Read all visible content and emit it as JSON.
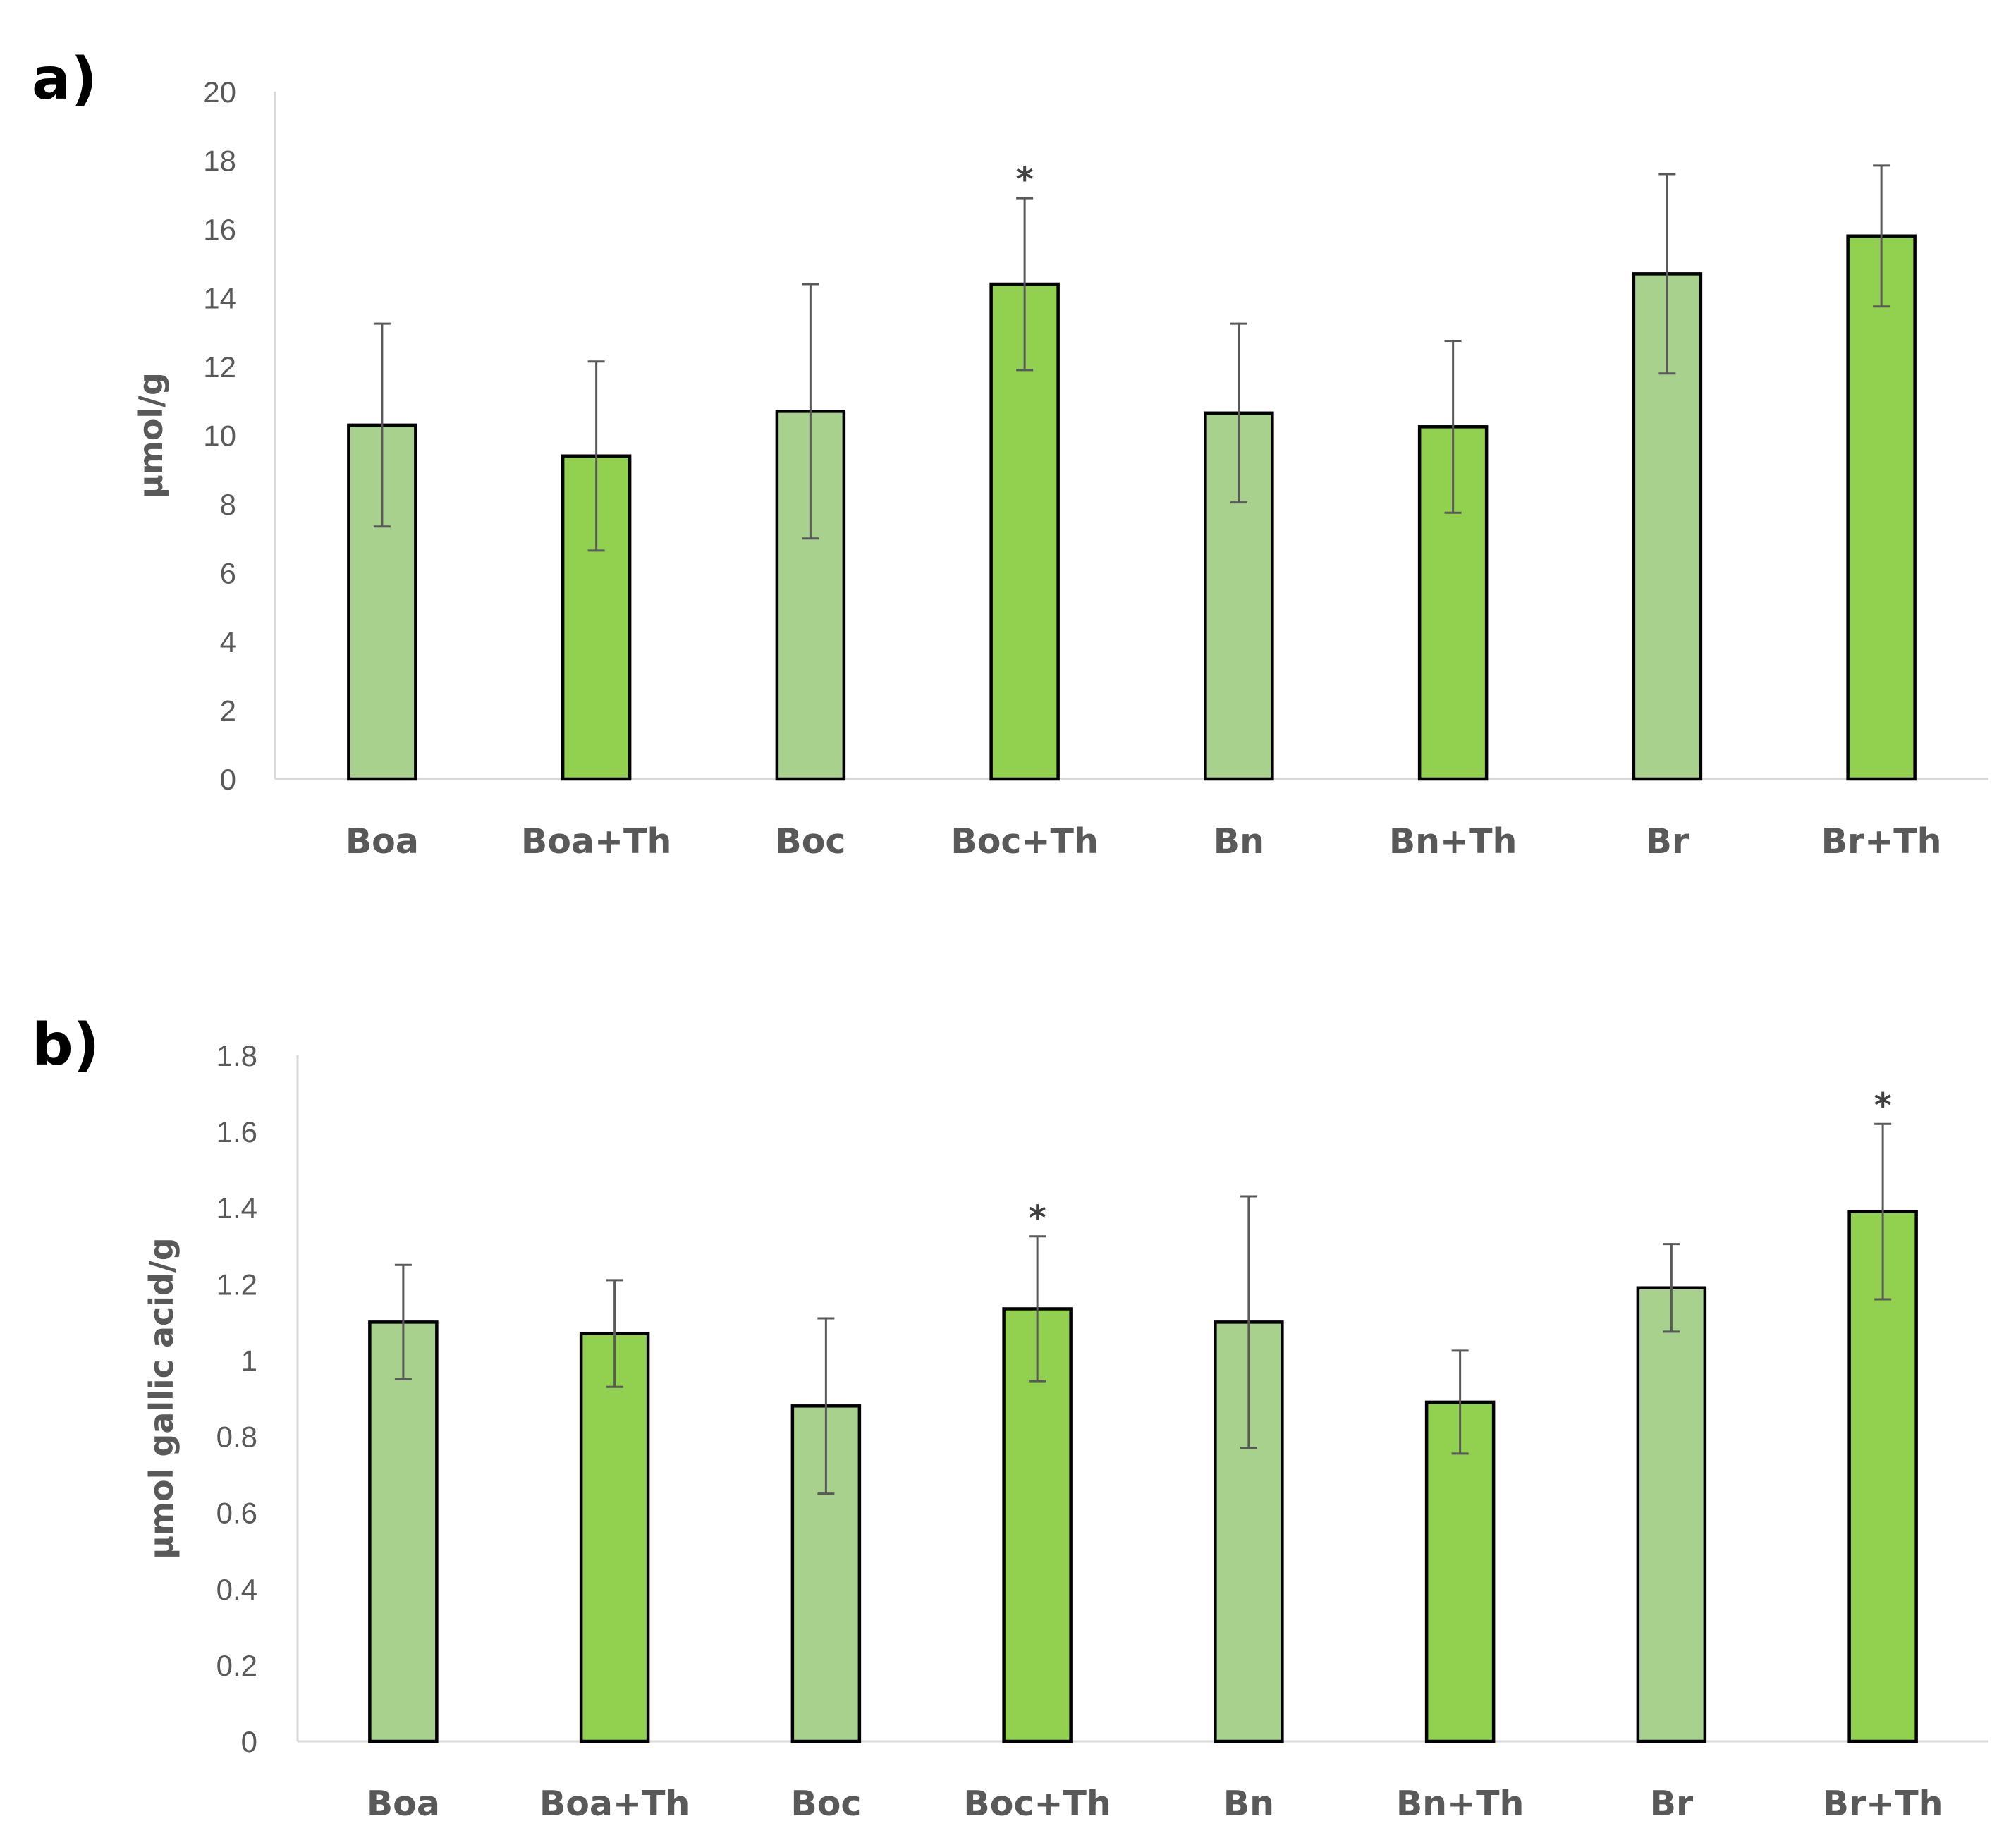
{
  "chart_data": [
    {
      "type": "bar",
      "panel_label": "a)",
      "ylabel": "µmol/g",
      "xlabel": "",
      "ylim": [
        0,
        20
      ],
      "ytick_step": 2,
      "ytick_labels": [
        "0",
        "2",
        "4",
        "6",
        "8",
        "10",
        "12",
        "14",
        "16",
        "18",
        "20"
      ],
      "categories": [
        "Boa",
        "Boa+Th",
        "Boc",
        "Boc+Th",
        "Bn",
        "Bn+Th",
        "Br",
        "Br+Th"
      ],
      "values": [
        10.3,
        9.4,
        10.7,
        14.4,
        10.65,
        10.25,
        14.7,
        15.8
      ],
      "errors": [
        2.95,
        2.75,
        3.7,
        2.5,
        2.6,
        2.5,
        2.9,
        2.05
      ],
      "significant": [
        "",
        "",
        "",
        "*",
        "",
        "",
        "",
        ""
      ],
      "colors": [
        "#a9d18e",
        "#92d050",
        "#a9d18e",
        "#92d050",
        "#a9d18e",
        "#92d050",
        "#a9d18e",
        "#92d050"
      ]
    },
    {
      "type": "bar",
      "panel_label": "b)",
      "ylabel": "µmol gallic acid/g",
      "xlabel": "",
      "ylim": [
        0,
        1.8
      ],
      "ytick_step": 0.2,
      "ytick_labels": [
        "0",
        "0.2",
        "0.4",
        "0.6",
        "0.8",
        "1",
        "1.2",
        "1.4",
        "1.6",
        "1.8"
      ],
      "categories": [
        "Boa",
        "Boa+Th",
        "Boc",
        "Boc+Th",
        "Bn",
        "Bn+Th",
        "Br",
        "Br+Th"
      ],
      "values": [
        1.1,
        1.07,
        0.88,
        1.135,
        1.1,
        0.89,
        1.19,
        1.39
      ],
      "errors": [
        0.15,
        0.14,
        0.23,
        0.19,
        0.33,
        0.135,
        0.115,
        0.23
      ],
      "significant": [
        "",
        "",
        "",
        "*",
        "",
        "",
        "",
        "*"
      ],
      "colors": [
        "#a9d18e",
        "#92d050",
        "#a9d18e",
        "#92d050",
        "#a9d18e",
        "#92d050",
        "#a9d18e",
        "#92d050"
      ]
    }
  ]
}
